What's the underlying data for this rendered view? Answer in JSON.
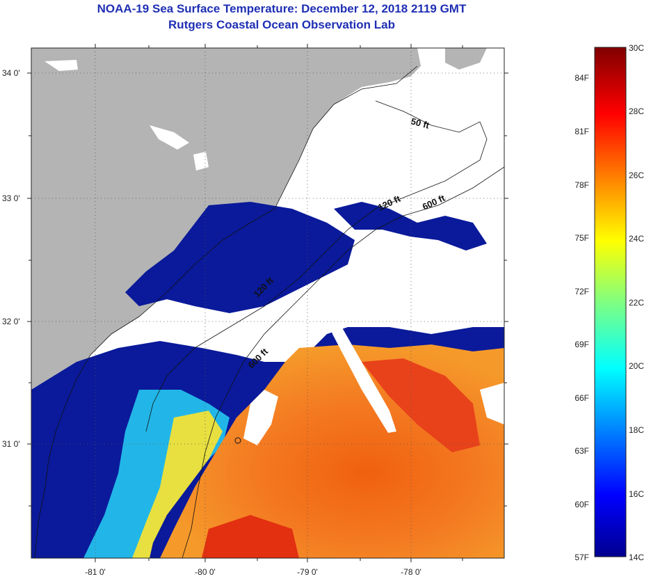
{
  "title": {
    "line1": "NOAA-19 Sea Surface Temperature:  December 12, 2018 2119 GMT",
    "line2": "Rutgers Coastal Ocean Observation Lab"
  },
  "map": {
    "lat_ticks": [
      "34 0'",
      "33 0'",
      "32 0'",
      "31 0'"
    ],
    "lon_ticks": [
      "-81 0'",
      "-80 0'",
      "-79 0'",
      "-78 0'"
    ],
    "isobaths": [
      "50 ft",
      "120 ft",
      "600 ft",
      "120 ft",
      "600 ft"
    ],
    "colors": {
      "land": "#b4b4b4",
      "cloud": "#ffffff",
      "cold": "#0a1a9a",
      "warm": "#f5711f",
      "hot": "#e83a10"
    }
  },
  "colorbar": {
    "fahrenheit": [
      "84F",
      "81F",
      "78F",
      "75F",
      "72F",
      "69F",
      "66F",
      "63F",
      "60F",
      "57F"
    ],
    "celsius": [
      "30C",
      "28C",
      "26C",
      "24C",
      "22C",
      "20C",
      "18C",
      "16C",
      "14C"
    ]
  }
}
